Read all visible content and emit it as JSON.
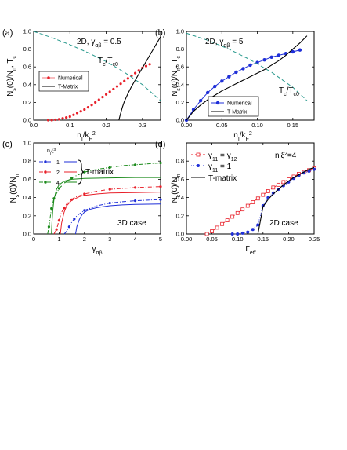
{
  "chart_data": [
    {
      "id": "a",
      "type": "scatter",
      "panel_label": "(a)",
      "annotation": "2D, γ_αβ = 0.5",
      "curve_label": "T_c/T_c0",
      "xlabel": "n_I/k_F^2",
      "ylabel": "N_s(0)/N_n, T_c",
      "xlim": [
        0,
        0.35
      ],
      "ylim": [
        0,
        1.0
      ],
      "xticks": [
        0.0,
        0.1,
        0.2,
        0.3
      ],
      "yticks": [
        0.0,
        0.2,
        0.4,
        0.6,
        0.8,
        1.0
      ],
      "legend": "center-left",
      "series": [
        {
          "name": "Numerical",
          "style": "red-dots",
          "color": "#e8202a",
          "x": [
            0.04,
            0.05,
            0.06,
            0.07,
            0.08,
            0.09,
            0.1,
            0.11,
            0.12,
            0.13,
            0.14,
            0.15,
            0.16,
            0.17,
            0.18,
            0.19,
            0.2,
            0.21,
            0.22,
            0.23,
            0.24,
            0.25,
            0.26,
            0.27,
            0.28,
            0.29,
            0.3,
            0.31,
            0.32
          ],
          "y": [
            0.0,
            0.0,
            0.005,
            0.01,
            0.02,
            0.03,
            0.04,
            0.06,
            0.08,
            0.1,
            0.12,
            0.145,
            0.17,
            0.2,
            0.23,
            0.26,
            0.29,
            0.32,
            0.35,
            0.38,
            0.41,
            0.44,
            0.47,
            0.5,
            0.53,
            0.56,
            0.59,
            0.61,
            0.63
          ]
        },
        {
          "name": "T-Matrix",
          "style": "black-line",
          "color": "#000000",
          "x": [
            0.235,
            0.24,
            0.245,
            0.25,
            0.26,
            0.27,
            0.28,
            0.29,
            0.3,
            0.31,
            0.32,
            0.33,
            0.34,
            0.35
          ],
          "y": [
            0.0,
            0.08,
            0.15,
            0.21,
            0.3,
            0.38,
            0.45,
            0.52,
            0.59,
            0.66,
            0.73,
            0.8,
            0.87,
            0.94
          ]
        },
        {
          "name": "",
          "style": "teal-dash",
          "color": "#2a9a8e",
          "x": [
            0.0,
            0.05,
            0.1,
            0.15,
            0.2,
            0.25,
            0.3,
            0.35
          ],
          "y": [
            1.0,
            0.93,
            0.85,
            0.76,
            0.66,
            0.54,
            0.4,
            0.22
          ]
        }
      ]
    },
    {
      "id": "b",
      "type": "scatter",
      "panel_label": "(b)",
      "annotation": "2D, γ_αβ = 5",
      "curve_label": "T_c/T_c0",
      "xlabel": "n_I/k_F^2",
      "ylabel": "N_s(0)/N_n, T_c",
      "xlim": [
        0,
        0.18
      ],
      "ylim": [
        0,
        1.0
      ],
      "xticks": [
        0.0,
        0.05,
        0.1,
        0.15
      ],
      "yticks": [
        0.0,
        0.2,
        0.4,
        0.6,
        0.8,
        1.0
      ],
      "legend": "bottom-center",
      "series": [
        {
          "name": "Numerical",
          "style": "blue-dots-line",
          "color": "#1f2fd8",
          "x": [
            0.0,
            0.01,
            0.02,
            0.03,
            0.04,
            0.05,
            0.06,
            0.07,
            0.08,
            0.09,
            0.1,
            0.11,
            0.12,
            0.13,
            0.14,
            0.15,
            0.16
          ],
          "y": [
            0.0,
            0.12,
            0.22,
            0.31,
            0.38,
            0.44,
            0.49,
            0.54,
            0.58,
            0.62,
            0.65,
            0.68,
            0.71,
            0.73,
            0.75,
            0.77,
            0.79
          ]
        },
        {
          "name": "T-Matrix",
          "style": "black-line",
          "color": "#000000",
          "x": [
            0.0,
            0.01,
            0.02,
            0.03,
            0.04,
            0.05,
            0.06,
            0.07,
            0.08,
            0.09,
            0.1,
            0.11,
            0.12,
            0.13,
            0.14,
            0.15,
            0.16,
            0.17
          ],
          "y": [
            0.0,
            0.1,
            0.17,
            0.23,
            0.28,
            0.33,
            0.37,
            0.41,
            0.45,
            0.49,
            0.53,
            0.57,
            0.62,
            0.67,
            0.73,
            0.8,
            0.87,
            0.95
          ]
        },
        {
          "name": "",
          "style": "teal-dash",
          "color": "#2a9a8e",
          "x": [
            0.0,
            0.03,
            0.06,
            0.09,
            0.12,
            0.15,
            0.17
          ],
          "y": [
            0.98,
            0.9,
            0.8,
            0.68,
            0.54,
            0.37,
            0.22
          ]
        }
      ]
    },
    {
      "id": "c",
      "type": "line",
      "panel_label": "(c)",
      "annotation": "3D case",
      "legend_title": "n_I ξ^3",
      "bracket_label": "T-matrix",
      "xlabel": "γ_αβ",
      "ylabel": "N_s(0)/N_n",
      "xlim": [
        0,
        5
      ],
      "ylim": [
        0,
        1.0
      ],
      "xticks": [
        0,
        1,
        2,
        3,
        4,
        5
      ],
      "yticks": [
        0.0,
        0.2,
        0.4,
        0.6,
        0.8,
        1.0
      ],
      "legend": "top-left",
      "series": [
        {
          "name": "1",
          "style": "blue-dashdot",
          "color": "#1f2fd8",
          "x": [
            1.2,
            1.3,
            1.4,
            1.5,
            1.7,
            2.0,
            2.5,
            3.0,
            3.5,
            4.0,
            4.5,
            5.0
          ],
          "y": [
            0.0,
            0.03,
            0.08,
            0.13,
            0.2,
            0.26,
            0.31,
            0.34,
            0.355,
            0.365,
            0.372,
            0.378
          ],
          "markers_x": [
            1.4,
            1.6,
            2.0,
            3.0,
            4.0,
            5.0
          ]
        },
        {
          "name": "2",
          "style": "red-dashdot",
          "color": "#e8202a",
          "x": [
            0.8,
            0.9,
            1.0,
            1.1,
            1.3,
            1.6,
            2.0,
            2.5,
            3.0,
            3.5,
            4.0,
            5.0
          ],
          "y": [
            0.0,
            0.05,
            0.15,
            0.24,
            0.33,
            0.4,
            0.44,
            0.47,
            0.49,
            0.5,
            0.51,
            0.52
          ],
          "markers_x": [
            0.9,
            1.0,
            1.2,
            1.5,
            2.0,
            3.0,
            4.0,
            5.0
          ]
        },
        {
          "name": "4",
          "style": "green-dashdot",
          "color": "#1a8a1a",
          "x": [
            0.55,
            0.6,
            0.65,
            0.7,
            0.8,
            1.0,
            1.3,
            1.6,
            2.0,
            2.5,
            3.0,
            3.5,
            4.0,
            5.0
          ],
          "y": [
            0.0,
            0.08,
            0.18,
            0.28,
            0.39,
            0.5,
            0.58,
            0.63,
            0.68,
            0.71,
            0.73,
            0.75,
            0.76,
            0.78
          ],
          "markers_x": [
            0.6,
            0.7,
            0.8,
            1.0,
            1.5,
            2.0,
            3.0,
            4.0,
            5.0
          ]
        },
        {
          "name": "T-matrix 1",
          "style": "blue-solid",
          "color": "#1f2fd8",
          "x": [
            1.65,
            1.7,
            1.8,
            1.9,
            2.0,
            2.2,
            2.5,
            3.0,
            3.5,
            4.0,
            5.0
          ],
          "y": [
            0.0,
            0.08,
            0.16,
            0.21,
            0.24,
            0.27,
            0.29,
            0.31,
            0.32,
            0.325,
            0.33
          ]
        },
        {
          "name": "T-matrix 2",
          "style": "red-solid",
          "color": "#e8202a",
          "x": [
            1.05,
            1.1,
            1.2,
            1.3,
            1.5,
            1.8,
            2.0,
            2.5,
            3.0,
            4.0,
            5.0
          ],
          "y": [
            0.0,
            0.12,
            0.24,
            0.31,
            0.37,
            0.41,
            0.425,
            0.44,
            0.45,
            0.455,
            0.46
          ]
        },
        {
          "name": "T-matrix 4",
          "style": "green-solid",
          "color": "#1a8a1a",
          "x": [
            0.7,
            0.72,
            0.75,
            0.8,
            0.9,
            1.0,
            1.2,
            1.5,
            2.0,
            3.0,
            4.0,
            5.0
          ],
          "y": [
            0.0,
            0.12,
            0.25,
            0.38,
            0.49,
            0.54,
            0.58,
            0.6,
            0.61,
            0.615,
            0.62,
            0.62
          ]
        }
      ]
    },
    {
      "id": "d",
      "type": "line",
      "panel_label": "(d)",
      "annotation": "2D case",
      "header_label": "n_I ξ^2=4",
      "xlabel": "Γ_eff",
      "ylabel": "N_s(0)/N_n",
      "xlim": [
        0,
        0.25
      ],
      "ylim": [
        0,
        1.0
      ],
      "xticks": [
        0.0,
        0.05,
        0.1,
        0.15,
        0.2,
        0.25
      ],
      "yticks": [
        0.0,
        0.2,
        0.4,
        0.6,
        0.8
      ],
      "legend": "top-left",
      "series": [
        {
          "name": "γ11 = γ12",
          "style": "red-dash-open-squares",
          "color": "#e8202a",
          "x": [
            0.04,
            0.05,
            0.06,
            0.07,
            0.08,
            0.09,
            0.1,
            0.11,
            0.12,
            0.13,
            0.14,
            0.15,
            0.16,
            0.17,
            0.18,
            0.19,
            0.2,
            0.21,
            0.22,
            0.23,
            0.24,
            0.25
          ],
          "y": [
            0.0,
            0.03,
            0.07,
            0.11,
            0.15,
            0.19,
            0.23,
            0.27,
            0.31,
            0.35,
            0.39,
            0.43,
            0.47,
            0.51,
            0.54,
            0.57,
            0.6,
            0.63,
            0.66,
            0.68,
            0.7,
            0.72
          ]
        },
        {
          "name": "γ11 = 1",
          "style": "blue-dot-filled",
          "color": "#1f2fd8",
          "x": [
            0.09,
            0.1,
            0.11,
            0.12,
            0.13,
            0.14,
            0.15,
            0.16,
            0.17,
            0.18,
            0.19,
            0.2,
            0.21,
            0.22,
            0.23,
            0.24,
            0.25
          ],
          "y": [
            0.0,
            0.0,
            0.01,
            0.02,
            0.05,
            0.1,
            0.31,
            0.4,
            0.45,
            0.49,
            0.53,
            0.57,
            0.61,
            0.64,
            0.67,
            0.69,
            0.71
          ]
        },
        {
          "name": "T-matrix",
          "style": "black-solid",
          "color": "#000000",
          "x": [
            0.14,
            0.145,
            0.15,
            0.16,
            0.17,
            0.18,
            0.19,
            0.2,
            0.21,
            0.22,
            0.23,
            0.24,
            0.25
          ],
          "y": [
            0.0,
            0.15,
            0.3,
            0.38,
            0.44,
            0.49,
            0.54,
            0.58,
            0.62,
            0.65,
            0.68,
            0.71,
            0.73
          ]
        }
      ]
    }
  ]
}
